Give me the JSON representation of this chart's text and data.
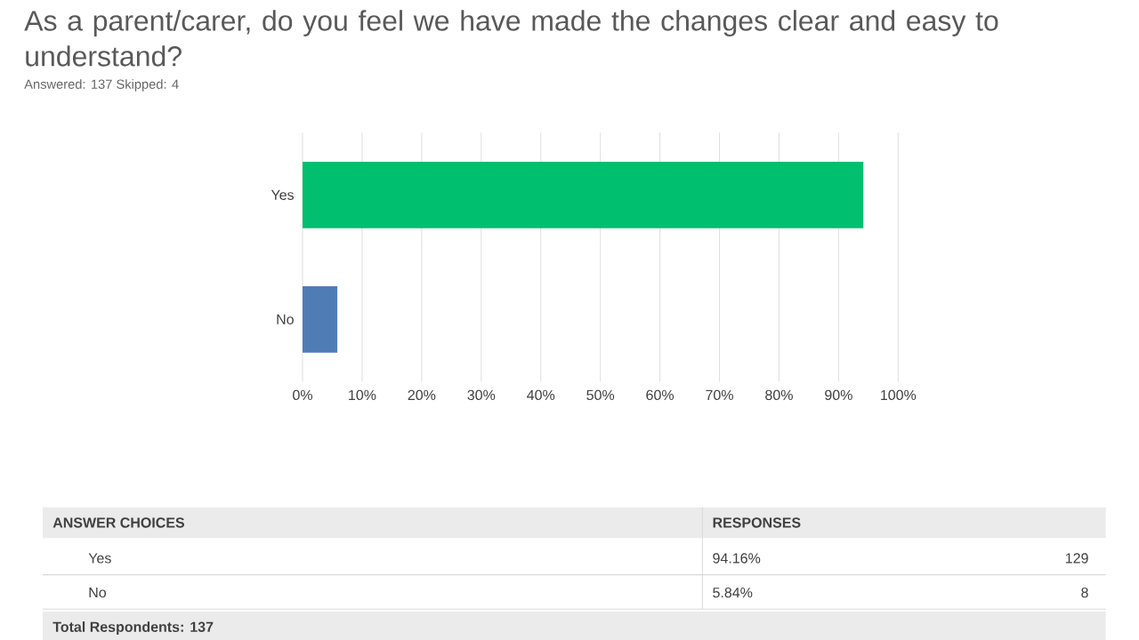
{
  "chart_data": {
    "type": "bar",
    "orientation": "horizontal",
    "title": "As a parent/carer, do you feel we have made the changes clear and easy to understand?",
    "subtitle": "Answered: 137    Skipped: 4",
    "categories": [
      "Yes",
      "No"
    ],
    "values": [
      94.16,
      5.84
    ],
    "colors": [
      "#00bf6f",
      "#507cb6"
    ],
    "xlim": [
      0,
      100
    ],
    "xticks": [
      {
        "value": 0,
        "label": "0%"
      },
      {
        "value": 10,
        "label": "10%"
      },
      {
        "value": 20,
        "label": "20%"
      },
      {
        "value": 30,
        "label": "30%"
      },
      {
        "value": 40,
        "label": "40%"
      },
      {
        "value": 50,
        "label": "50%"
      },
      {
        "value": 60,
        "label": "60%"
      },
      {
        "value": 70,
        "label": "70%"
      },
      {
        "value": 80,
        "label": "80%"
      },
      {
        "value": 90,
        "label": "90%"
      },
      {
        "value": 100,
        "label": "100%"
      }
    ],
    "grid": "x",
    "annotations": [
      "ANSWER CHOICES",
      "RESPONSES",
      "94.16%",
      "129",
      "5.84%",
      "8",
      "Total Respondents: 137"
    ]
  }
}
